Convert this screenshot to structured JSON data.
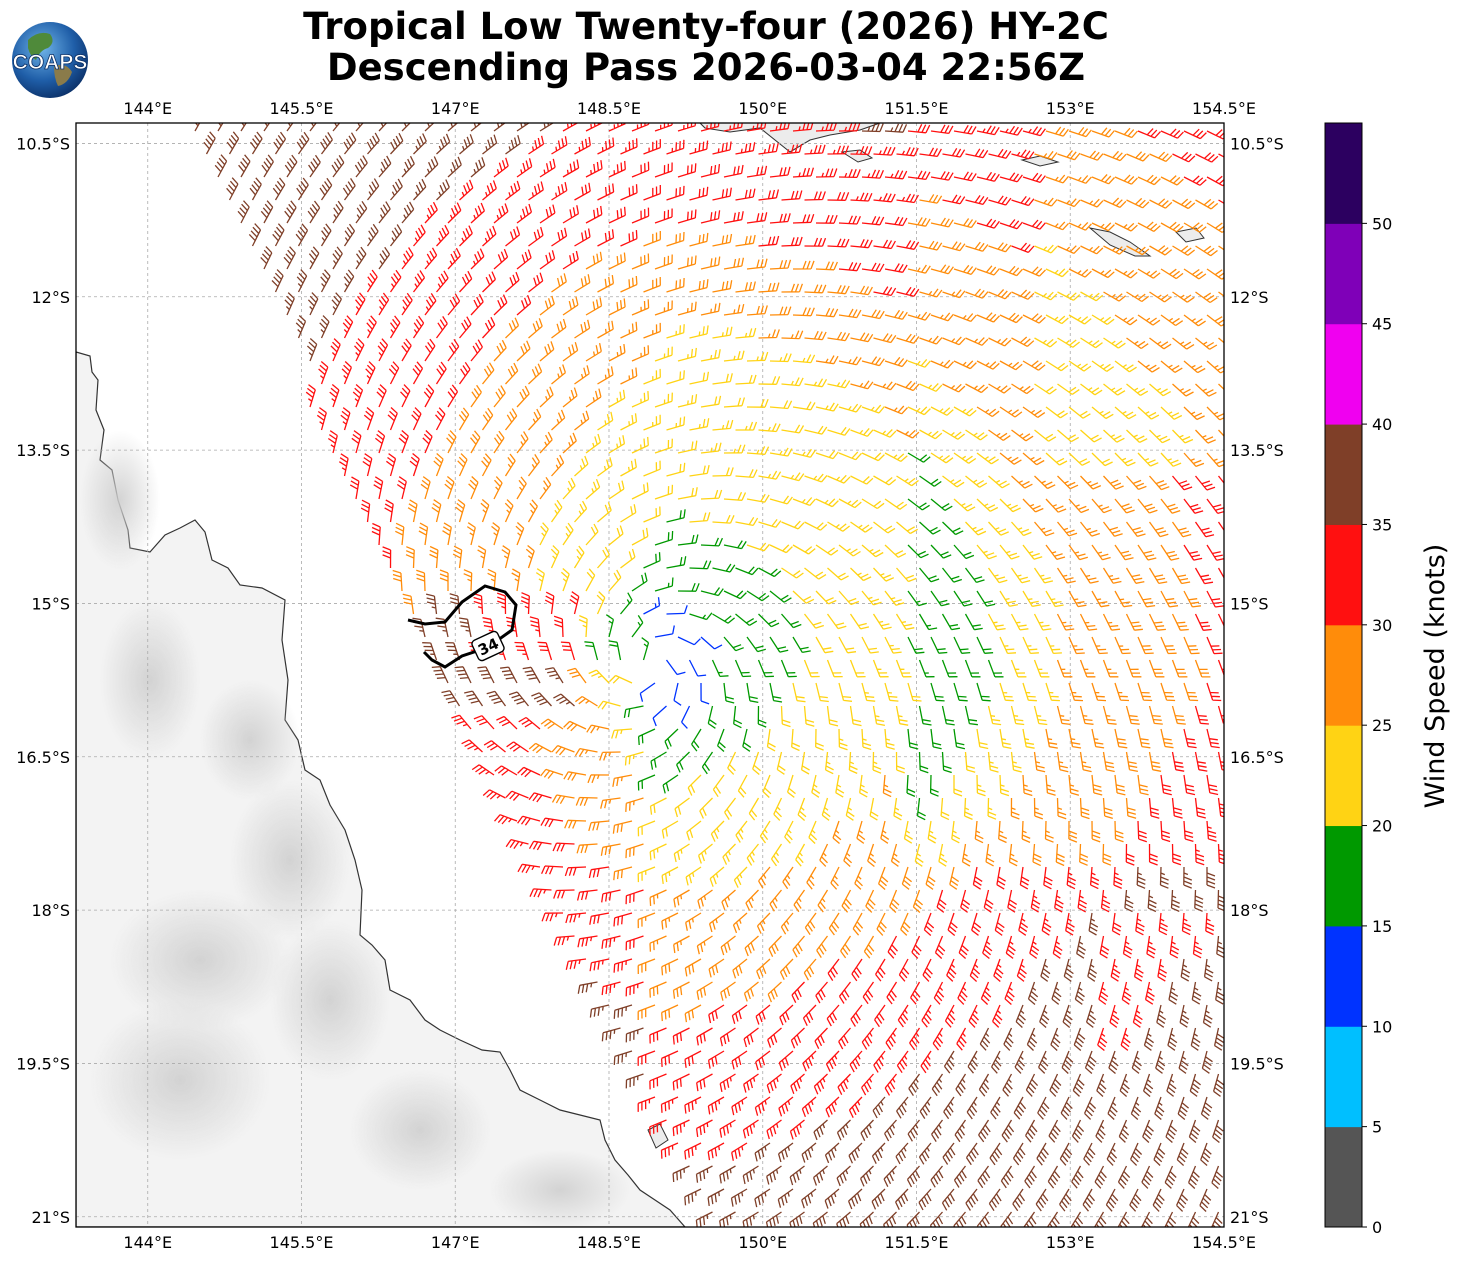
{
  "title": {
    "line1": "Tropical Low Twenty-four (2026) HY-2C",
    "line2": "Descending Pass 2026-03-04 22:56Z"
  },
  "logo": {
    "text": "COAPS",
    "icon": "globe-logo-icon"
  },
  "axes": {
    "lon_labels": [
      "144°E",
      "145.5°E",
      "147°E",
      "148.5°E",
      "150°E",
      "151.5°E",
      "153°E",
      "154.5°E"
    ],
    "lat_labels": [
      "10.5°S",
      "12°S",
      "13.5°S",
      "15°S",
      "16.5°S",
      "18°S",
      "19.5°S",
      "21°S"
    ],
    "lon_range": [
      143.3,
      154.5
    ],
    "lat_range": [
      -21.1,
      -10.3
    ],
    "grid": true
  },
  "contour": {
    "label": "34"
  },
  "colorbar": {
    "title": "Wind Speed (knots)",
    "ticks": [
      "0",
      "5",
      "10",
      "15",
      "20",
      "25",
      "30",
      "35",
      "40",
      "45",
      "50"
    ],
    "colors": [
      "#555555",
      "#00bfff",
      "#0033ff",
      "#009900",
      "#ffd314",
      "#ff8c0a",
      "#ff1010",
      "#7f3f28",
      "#f000f0",
      "#7f00b8",
      "#2c0060"
    ]
  },
  "chart_data": {
    "type": "wind-barbs",
    "center_lon": 148.9,
    "center_lat": -15.6,
    "speed_units": "knots"
  }
}
